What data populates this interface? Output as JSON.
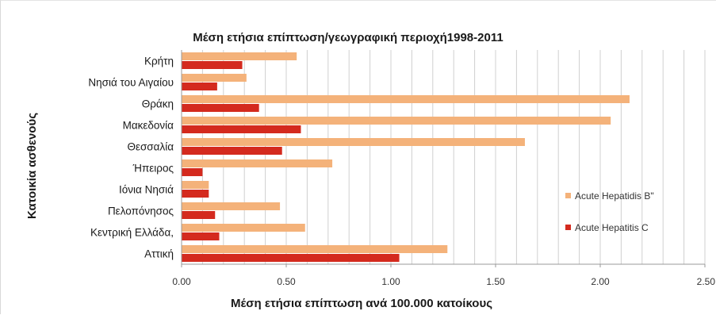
{
  "colors": {
    "hepatitis_b": "#F4B27A",
    "hepatitis_c": "#D42A1E",
    "grid": "#d0d0d0",
    "axis": "#999999"
  },
  "chart_data": {
    "type": "bar",
    "orientation": "horizontal",
    "title": "Μέση ετήσια επίπτωση/γεωγραφική περιοχή1998-2011",
    "xlabel": "Μέση ετήσια επίπτωση ανά 100.000 κατοίκους",
    "ylabel": "Κατοικία ασθενούς",
    "categories": [
      "Κρήτη",
      "Νησιά του Αιγαίου",
      "Θράκη",
      "Μακεδονία",
      "Θεσσαλία",
      "Ήπειρος",
      "Ιόνια Νησιά",
      "Πελοπόνησος",
      "Κεντρική Ελλάδα,",
      "Αττική"
    ],
    "series": [
      {
        "name": "Acute Hepatidis B\"",
        "values": [
          0.55,
          0.31,
          2.14,
          2.05,
          1.64,
          0.72,
          0.13,
          0.47,
          0.59,
          1.27
        ]
      },
      {
        "name": "Acute Hepatitis C",
        "values": [
          0.29,
          0.17,
          0.37,
          0.57,
          0.48,
          0.1,
          0.13,
          0.16,
          0.18,
          1.04
        ]
      }
    ],
    "xlim": [
      0,
      2.5
    ],
    "x_ticks": [
      "0.00",
      "0.50",
      "1.00",
      "1.50",
      "2.00",
      "2.50"
    ],
    "grid": true,
    "legend_position": "right"
  }
}
